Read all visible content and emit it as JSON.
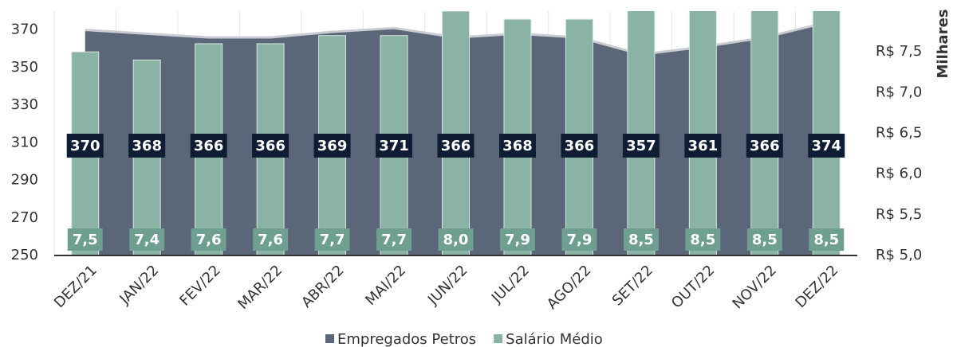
{
  "chart_data": {
    "type": "bar_area",
    "categories": [
      "DEZ/21",
      "JAN/22",
      "FEV/22",
      "MAR/22",
      "ABR/22",
      "MAI/22",
      "JUN/22",
      "JUL/22",
      "AGO/22",
      "SET/22",
      "OUT/22",
      "NOV/22",
      "DEZ/22"
    ],
    "series": [
      {
        "name": "Empregados Petros",
        "type": "area",
        "color": "#5b6678",
        "values": [
          370,
          368,
          366,
          366,
          369,
          371,
          366,
          368,
          366,
          357,
          361,
          366,
          374
        ]
      },
      {
        "name": "Salário Médio",
        "type": "bar",
        "axis": "y2",
        "color": "#8ab3a6",
        "values": [
          7.5,
          7.4,
          7.6,
          7.6,
          7.7,
          7.7,
          8.0,
          7.9,
          7.9,
          8.5,
          8.5,
          8.5,
          8.5
        ],
        "value_labels": [
          "7,5",
          "7,4",
          "7,6",
          "7,6",
          "7,7",
          "7,7",
          "8,0",
          "7,9",
          "7,9",
          "8,5",
          "8,5",
          "8,5",
          "8,5"
        ]
      }
    ],
    "ylim": [
      250,
      380
    ],
    "yticks": [
      250,
      270,
      290,
      310,
      330,
      350,
      370
    ],
    "y2lim": [
      5,
      8
    ],
    "y2ticks": [
      {
        "value": 5,
        "label": "R$ 5,0"
      },
      {
        "value": 5.5,
        "label": "R$ 5,5"
      },
      {
        "value": 6,
        "label": "R$ 6,0"
      },
      {
        "value": 6.5,
        "label": "R$ 6,5"
      },
      {
        "value": 7,
        "label": "R$ 7,0"
      },
      {
        "value": 7.5,
        "label": "R$ 7,5"
      }
    ],
    "y2label": "Milhares",
    "legend": "bottom"
  }
}
